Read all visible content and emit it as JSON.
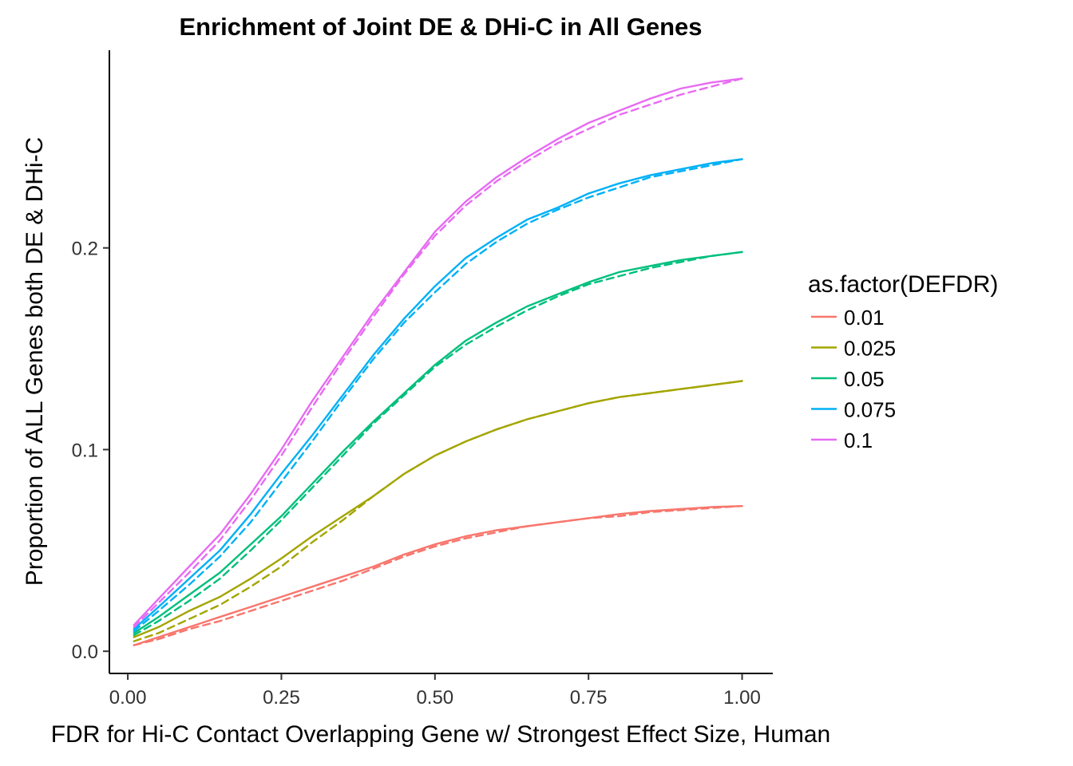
{
  "chart_data": {
    "type": "line",
    "title": "Enrichment of Joint DE & DHi-C in All Genes",
    "xlabel": "FDR for Hi-C Contact Overlapping Gene w/ Strongest Effect Size, Human",
    "ylabel": "Proportion of ALL Genes both DE & DHi-C",
    "xlim": [
      -0.03,
      1.05
    ],
    "ylim": [
      -0.011,
      0.298
    ],
    "x_ticks": [
      0.0,
      0.25,
      0.5,
      0.75,
      1.0
    ],
    "x_tick_labels": [
      "0.00",
      "0.25",
      "0.50",
      "0.75",
      "1.00"
    ],
    "y_ticks": [
      0.0,
      0.1,
      0.2
    ],
    "y_tick_labels": [
      "0.0",
      "0.1",
      "0.2"
    ],
    "grid": false,
    "legend": {
      "title": "as.factor(DEFDR)",
      "placement": "right"
    },
    "x": [
      0.01,
      0.05,
      0.1,
      0.15,
      0.2,
      0.25,
      0.3,
      0.35,
      0.4,
      0.45,
      0.5,
      0.55,
      0.6,
      0.65,
      0.7,
      0.75,
      0.8,
      0.85,
      0.9,
      0.95,
      1.0
    ],
    "series": [
      {
        "name": "0.01",
        "color": "#F8766D",
        "solid": [
          0.003,
          0.007,
          0.012,
          0.017,
          0.022,
          0.027,
          0.032,
          0.037,
          0.042,
          0.048,
          0.053,
          0.057,
          0.06,
          0.062,
          0.064,
          0.066,
          0.068,
          0.0695,
          0.0705,
          0.0715,
          0.072
        ],
        "dashed": [
          0.003,
          0.006,
          0.011,
          0.015,
          0.02,
          0.025,
          0.03,
          0.035,
          0.041,
          0.047,
          0.052,
          0.056,
          0.059,
          0.062,
          0.064,
          0.066,
          0.067,
          0.069,
          0.07,
          0.071,
          0.072
        ]
      },
      {
        "name": "0.025",
        "color": "#A3A500",
        "solid": [
          0.007,
          0.012,
          0.02,
          0.027,
          0.036,
          0.046,
          0.057,
          0.067,
          0.077,
          0.088,
          0.097,
          0.104,
          0.11,
          0.115,
          0.119,
          0.123,
          0.126,
          0.128,
          0.13,
          0.132,
          0.134
        ],
        "dashed": [
          0.005,
          0.009,
          0.016,
          0.023,
          0.032,
          0.042,
          0.054,
          0.065,
          0.077,
          0.088,
          0.097,
          0.104,
          0.11,
          0.115,
          0.119,
          0.123,
          0.126,
          0.128,
          0.13,
          0.132,
          0.134
        ]
      },
      {
        "name": "0.05",
        "color": "#00BF7D",
        "solid": [
          0.009,
          0.017,
          0.028,
          0.039,
          0.053,
          0.067,
          0.083,
          0.099,
          0.114,
          0.128,
          0.142,
          0.154,
          0.163,
          0.171,
          0.177,
          0.183,
          0.188,
          0.191,
          0.194,
          0.196,
          0.198
        ],
        "dashed": [
          0.008,
          0.015,
          0.025,
          0.036,
          0.05,
          0.065,
          0.081,
          0.097,
          0.113,
          0.127,
          0.141,
          0.152,
          0.161,
          0.169,
          0.176,
          0.182,
          0.186,
          0.19,
          0.193,
          0.196,
          0.198
        ]
      },
      {
        "name": "0.075",
        "color": "#00B0F6",
        "solid": [
          0.011,
          0.022,
          0.036,
          0.05,
          0.068,
          0.088,
          0.107,
          0.127,
          0.147,
          0.165,
          0.181,
          0.195,
          0.205,
          0.214,
          0.22,
          0.227,
          0.232,
          0.236,
          0.239,
          0.242,
          0.244
        ],
        "dashed": [
          0.01,
          0.02,
          0.033,
          0.047,
          0.064,
          0.084,
          0.104,
          0.125,
          0.145,
          0.163,
          0.178,
          0.192,
          0.203,
          0.212,
          0.219,
          0.225,
          0.23,
          0.235,
          0.238,
          0.241,
          0.244
        ]
      },
      {
        "name": "0.1",
        "color": "#E76BF3",
        "solid": [
          0.013,
          0.026,
          0.042,
          0.058,
          0.078,
          0.1,
          0.124,
          0.146,
          0.168,
          0.188,
          0.208,
          0.223,
          0.235,
          0.245,
          0.254,
          0.262,
          0.268,
          0.274,
          0.279,
          0.282,
          0.284
        ],
        "dashed": [
          0.012,
          0.024,
          0.039,
          0.055,
          0.075,
          0.097,
          0.121,
          0.144,
          0.166,
          0.187,
          0.206,
          0.221,
          0.233,
          0.243,
          0.252,
          0.259,
          0.266,
          0.271,
          0.276,
          0.28,
          0.284
        ]
      }
    ]
  }
}
